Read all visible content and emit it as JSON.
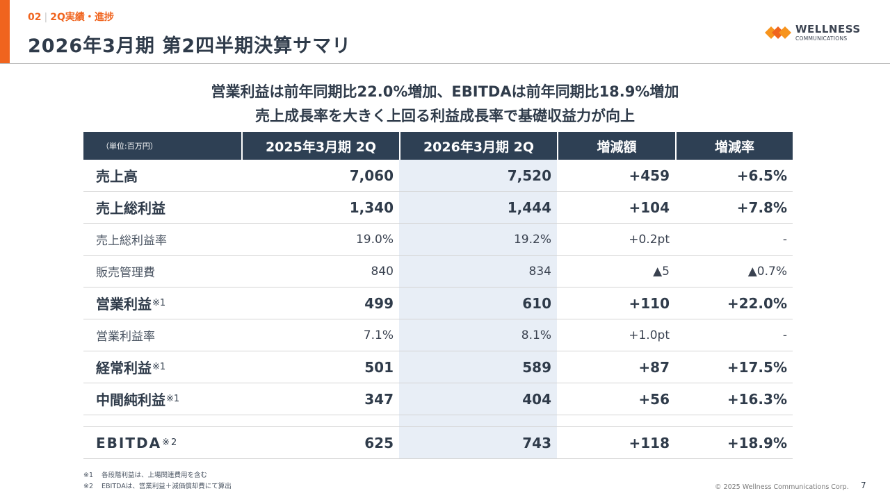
{
  "header": {
    "section_number": "02",
    "section_name": "2Q実績・進捗",
    "title": "2026年3月期 第2四半期決算サマリ"
  },
  "logo": {
    "name": "WELLNESS",
    "sub": "COMMUNICATIONS",
    "colors": [
      "#f7941d",
      "#f0641e"
    ]
  },
  "headline": {
    "line1": "営業利益は前年同期比22.0%増加、EBITDAは前年同期比18.9%増加",
    "line2": "売上成長率を大きく上回る利益成長率で基礎収益力が向上"
  },
  "table": {
    "unit": "（単位:百万円）",
    "columns": [
      "2025年3月期 2Q",
      "2026年3月期 2Q",
      "増減額",
      "増減率"
    ],
    "rows": [
      {
        "label": "売上高",
        "note": "",
        "prev": "7,060",
        "curr": "7,520",
        "diff": "+459",
        "rate": "+6.5%"
      },
      {
        "label": "売上総利益",
        "note": "",
        "prev": "1,340",
        "curr": "1,444",
        "diff": "+104",
        "rate": "+7.8%"
      },
      {
        "label": "売上総利益率",
        "note": "",
        "prev": "19.0%",
        "curr": "19.2%",
        "diff": "+0.2pt",
        "rate": "-"
      },
      {
        "label": "販売管理費",
        "note": "",
        "prev": "840",
        "curr": "834",
        "diff": "▲5",
        "rate": "▲0.7%"
      },
      {
        "label": "営業利益",
        "note": "※1",
        "prev": "499",
        "curr": "610",
        "diff": "+110",
        "rate": "+22.0%"
      },
      {
        "label": "営業利益率",
        "note": "",
        "prev": "7.1%",
        "curr": "8.1%",
        "diff": "+1.0pt",
        "rate": "-"
      },
      {
        "label": "経常利益",
        "note": "※1",
        "prev": "501",
        "curr": "589",
        "diff": "+87",
        "rate": "+17.5%"
      },
      {
        "label": "中間純利益",
        "note": "※1",
        "prev": "347",
        "curr": "404",
        "diff": "+56",
        "rate": "+16.3%"
      }
    ],
    "ebitda": {
      "label": "EBITDA",
      "note": "※2",
      "prev": "625",
      "curr": "743",
      "diff": "+118",
      "rate": "+18.9%"
    }
  },
  "footnotes": [
    {
      "mark": "※1",
      "text": "各段階利益は、上場関連費用を含む"
    },
    {
      "mark": "※2",
      "text": "EBITDAは、営業利益＋減価償却費にて算出"
    }
  ],
  "footer": {
    "copyright": "© 2025 Wellness Communications Corp.",
    "page": "7"
  }
}
